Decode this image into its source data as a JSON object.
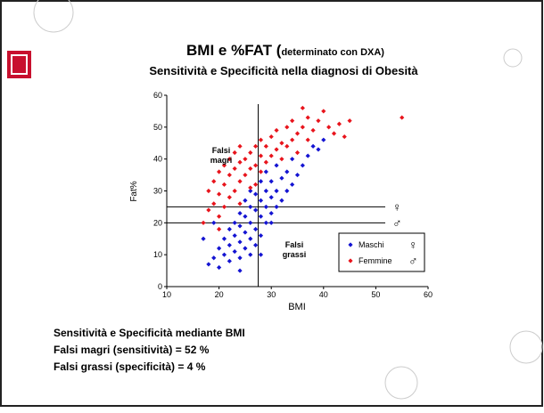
{
  "chart_data": {
    "type": "scatter",
    "title": "BMI e %FAT (",
    "title_note": "determinato con DXA)",
    "subtitle": "Sensitività e Specificità nella diagnosi di Obesità",
    "xlabel": "BMI",
    "ylabel": "Fat%",
    "xlim": [
      10,
      60
    ],
    "ylim": [
      0,
      60
    ],
    "xticks": [
      10,
      20,
      30,
      40,
      50,
      60
    ],
    "yticks": [
      0,
      10,
      20,
      30,
      40,
      50,
      60
    ],
    "vlines": [
      {
        "value": 27.5
      }
    ],
    "hlines": [
      {
        "value": 25,
        "label": "♀"
      },
      {
        "value": 20,
        "label": "♂"
      }
    ],
    "annotations": [
      [
        "Falsi",
        "magri"
      ],
      [
        "Falsi",
        "grassi"
      ]
    ],
    "series": [
      {
        "name": "Maschi",
        "symbol": "♀",
        "color": "#1414d2",
        "x": [
          18,
          19,
          20,
          20,
          21,
          21,
          22,
          22,
          22,
          23,
          23,
          23,
          24,
          24,
          24,
          24,
          25,
          25,
          25,
          25,
          26,
          26,
          26,
          26,
          26,
          27,
          27,
          27,
          27,
          28,
          28,
          28,
          28,
          28,
          29,
          29,
          29,
          29,
          30,
          30,
          30,
          31,
          31,
          31,
          32,
          32,
          33,
          33,
          34,
          34,
          35,
          36,
          37,
          38,
          39,
          40,
          30,
          19,
          17,
          24
        ],
        "y": [
          7,
          9,
          6,
          12,
          10,
          15,
          8,
          13,
          18,
          11,
          16,
          20,
          9,
          14,
          19,
          23,
          12,
          17,
          22,
          27,
          10,
          15,
          20,
          25,
          30,
          13,
          18,
          24,
          29,
          10,
          16,
          22,
          27,
          33,
          20,
          25,
          30,
          36,
          23,
          28,
          33,
          25,
          30,
          38,
          27,
          34,
          30,
          36,
          32,
          40,
          35,
          38,
          41,
          44,
          43,
          46,
          20,
          20,
          15,
          5
        ]
      },
      {
        "name": "Femmine",
        "symbol": "♂",
        "color": "#e8141c",
        "x": [
          17,
          18,
          18,
          19,
          19,
          20,
          20,
          20,
          21,
          21,
          21,
          22,
          22,
          22,
          23,
          23,
          23,
          24,
          24,
          24,
          25,
          25,
          26,
          26,
          26,
          27,
          27,
          28,
          28,
          28,
          29,
          29,
          30,
          30,
          31,
          31,
          32,
          32,
          33,
          33,
          34,
          34,
          35,
          35,
          36,
          37,
          37,
          38,
          39,
          40,
          41,
          42,
          43,
          44,
          45,
          55,
          36,
          20,
          24,
          27
        ],
        "y": [
          20,
          24,
          30,
          26,
          33,
          22,
          29,
          36,
          25,
          32,
          38,
          28,
          35,
          40,
          30,
          37,
          42,
          33,
          39,
          44,
          35,
          40,
          31,
          37,
          42,
          38,
          44,
          36,
          41,
          46,
          39,
          44,
          41,
          47,
          43,
          49,
          40,
          45,
          44,
          50,
          46,
          52,
          42,
          48,
          50,
          46,
          53,
          49,
          52,
          55,
          50,
          48,
          51,
          47,
          52,
          53,
          56,
          18,
          26,
          32
        ]
      }
    ]
  },
  "text": [
    "Sensitività e Specificità mediante BMI",
    "Falsi magri (sensitività) = 52 %",
    "Falsi grassi (specificità) = 4 %"
  ]
}
